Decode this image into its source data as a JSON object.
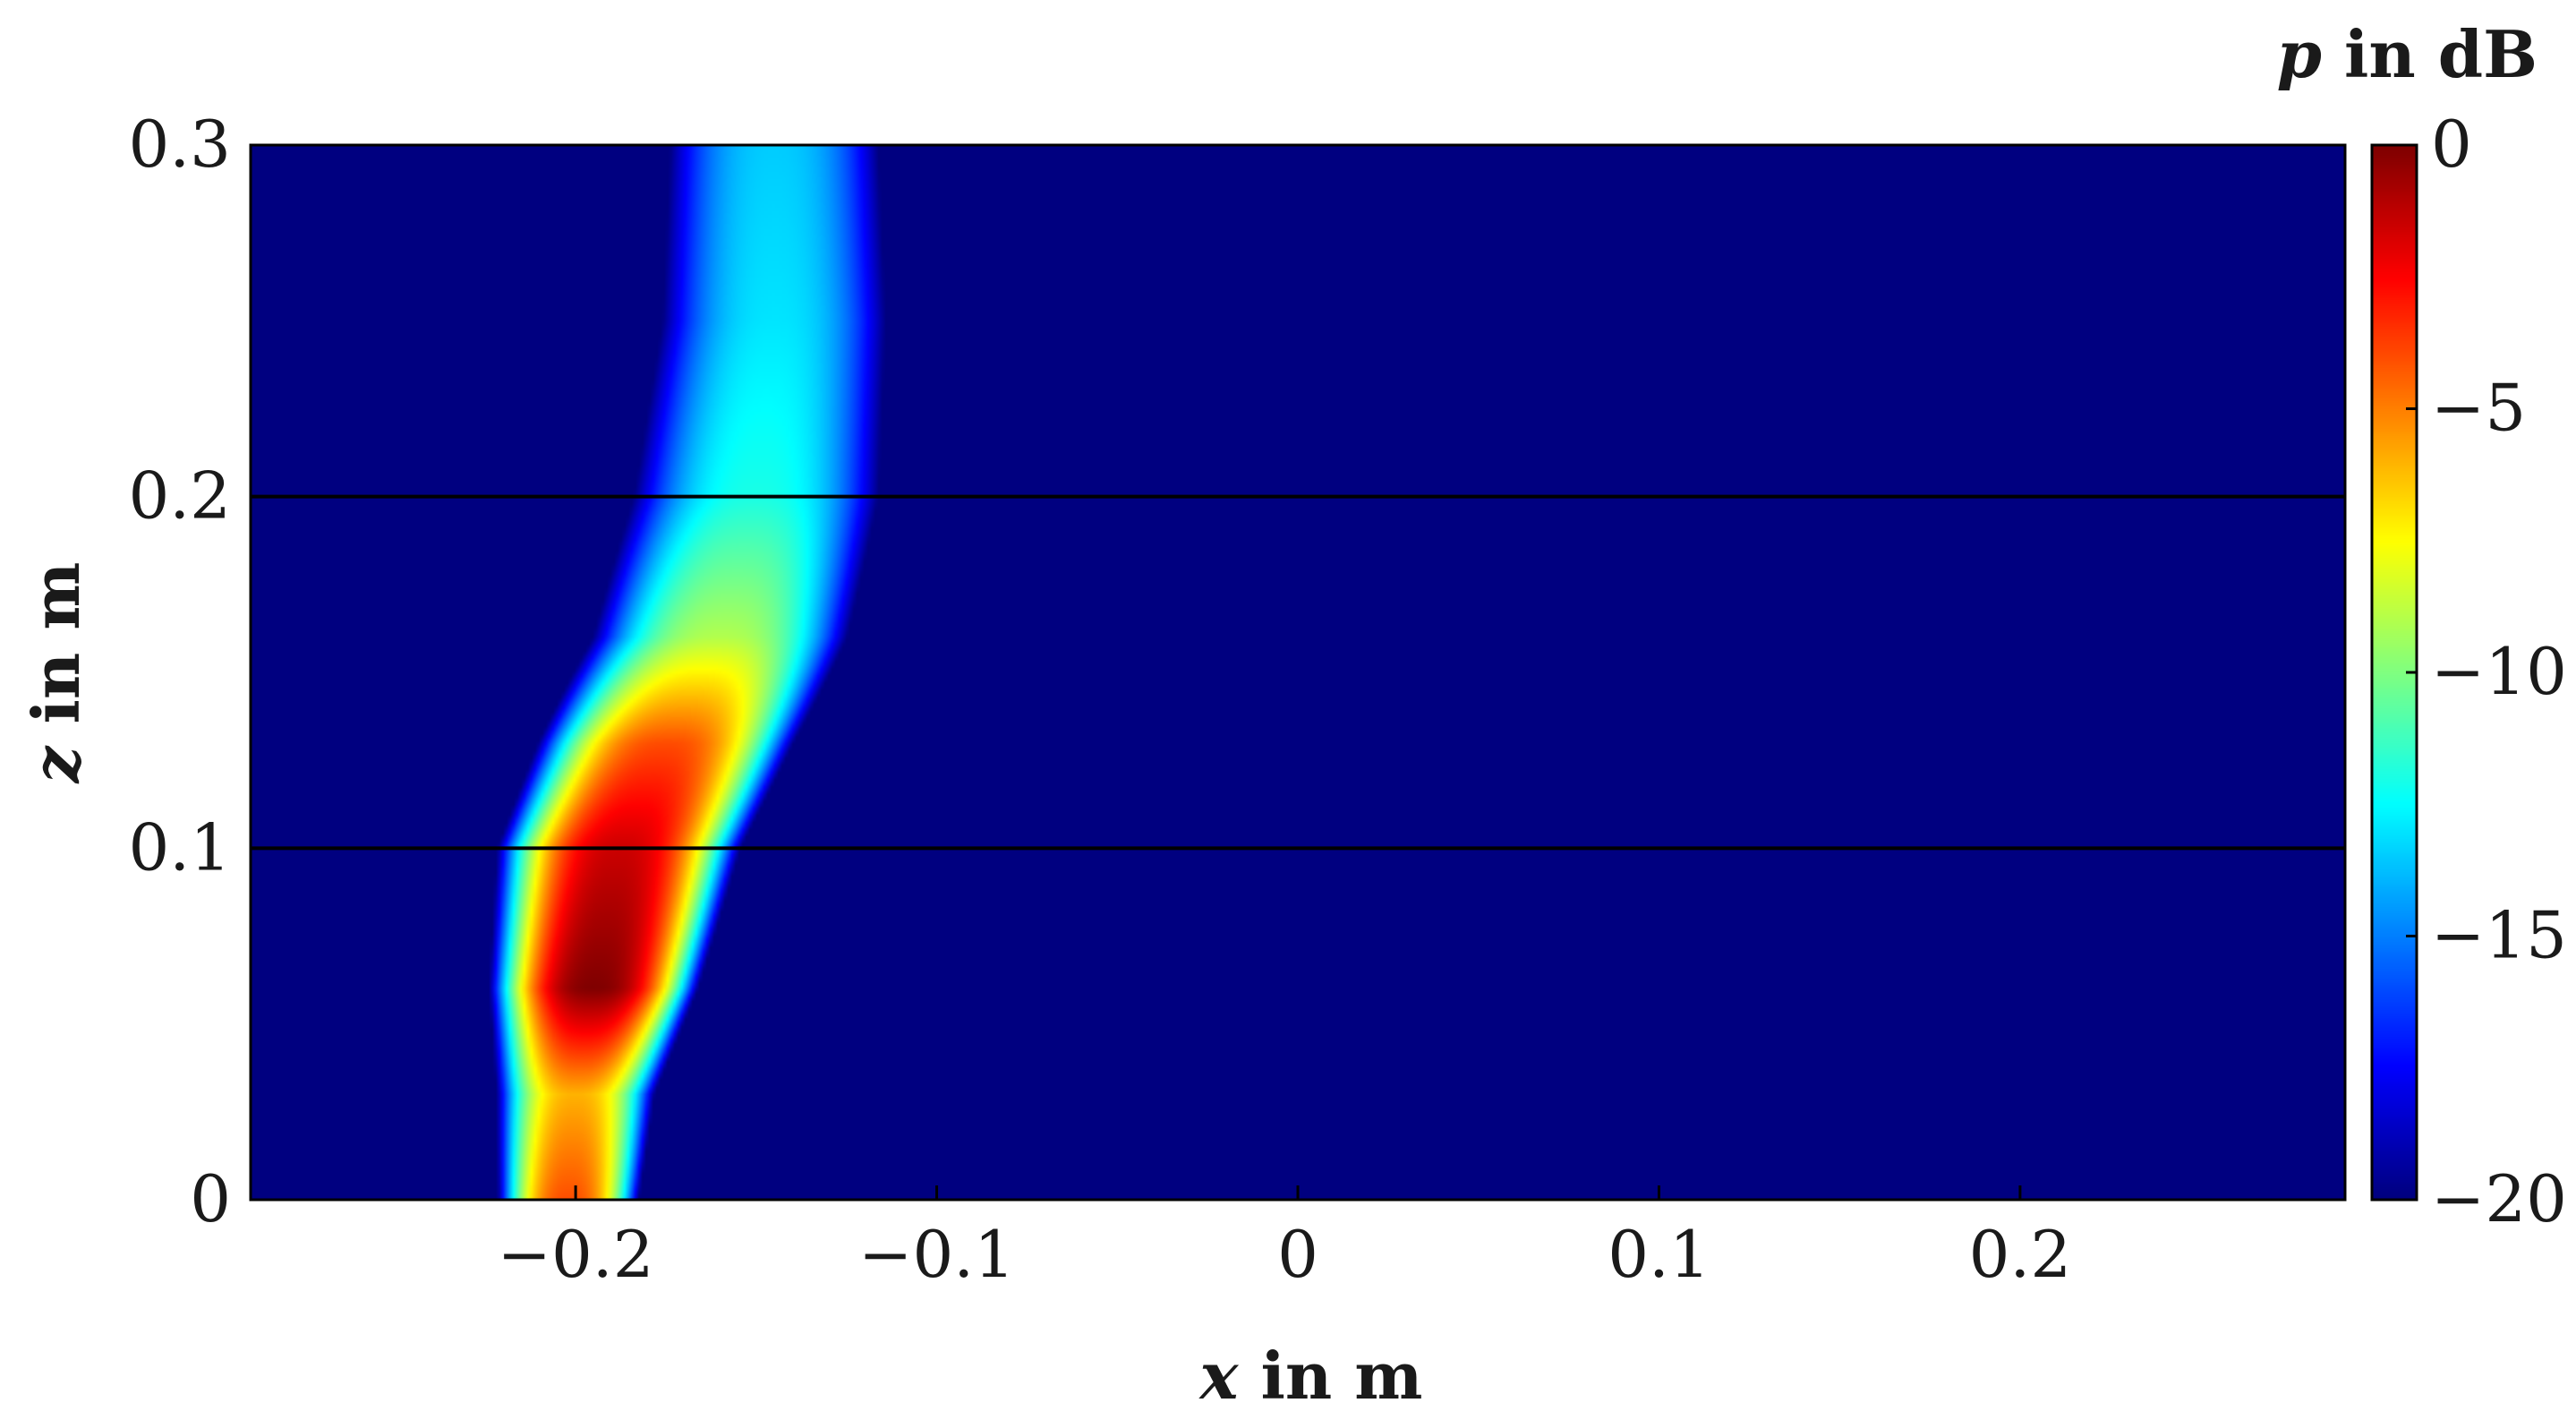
{
  "chart_data": {
    "type": "heatmap",
    "title": "",
    "xlabel": {
      "symbol": "x",
      "rest": " in m"
    },
    "ylabel": {
      "symbol": "z",
      "rest": " in m"
    },
    "colorbar_label": {
      "symbol": "p",
      "rest": " in dB"
    },
    "xlim": [
      -0.29,
      0.29
    ],
    "ylim": [
      0,
      0.3
    ],
    "clim": [
      -20,
      0
    ],
    "colormap": "jet",
    "background_level": -20,
    "x_ticks": [
      -0.2,
      -0.1,
      0,
      0.1,
      0.2
    ],
    "x_tick_labels": [
      "−0.2",
      "−0.1",
      "0",
      "0.1",
      "0.2"
    ],
    "y_ticks": [
      0,
      0.1,
      0.2,
      0.3
    ],
    "y_tick_labels": [
      "0",
      "0.1",
      "0.2",
      "0.3"
    ],
    "colorbar_ticks": [
      0,
      -5,
      -10,
      -15,
      -20
    ],
    "colorbar_tick_labels": [
      "0",
      "−5",
      "−10",
      "−15",
      "−20"
    ],
    "horizontal_lines": [
      0.1,
      0.2
    ],
    "beam": {
      "description_values": "approximate level (dB) across the beam at sampled heights",
      "profile": [
        {
          "z": 0.0,
          "x_center": -0.202,
          "half_width": 0.022,
          "peak_db": -4.0
        },
        {
          "z": 0.03,
          "x_center": -0.2,
          "half_width": 0.026,
          "peak_db": -6.0
        },
        {
          "z": 0.06,
          "x_center": -0.195,
          "half_width": 0.03,
          "peak_db": 0.0
        },
        {
          "z": 0.1,
          "x_center": -0.188,
          "half_width": 0.036,
          "peak_db": -1.5
        },
        {
          "z": 0.13,
          "x_center": -0.175,
          "half_width": 0.04,
          "peak_db": -4.0
        },
        {
          "z": 0.16,
          "x_center": -0.16,
          "half_width": 0.046,
          "peak_db": -9.0
        },
        {
          "z": 0.2,
          "x_center": -0.15,
          "half_width": 0.05,
          "peak_db": -12.0
        },
        {
          "z": 0.25,
          "x_center": -0.145,
          "half_width": 0.048,
          "peak_db": -13.0
        },
        {
          "z": 0.3,
          "x_center": -0.145,
          "half_width": 0.046,
          "peak_db": -13.5
        }
      ]
    }
  }
}
